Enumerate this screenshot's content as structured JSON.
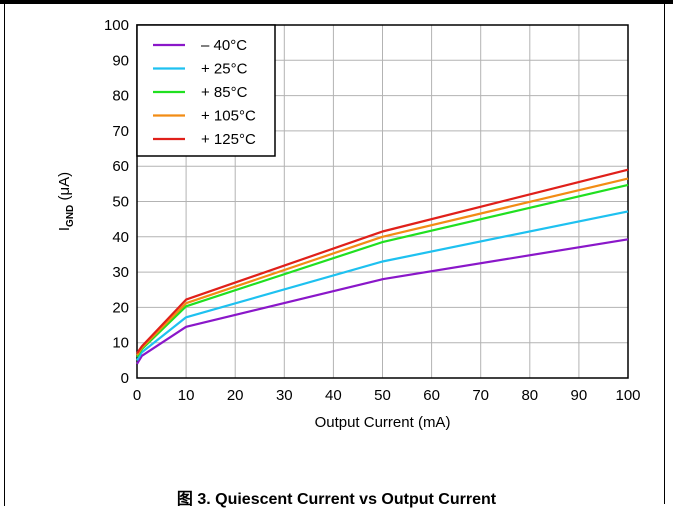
{
  "caption": "图 3. Quiescent Current vs Output Current",
  "chart_data": {
    "type": "line",
    "xlabel": "Output Current (mA)",
    "ylabel": "I",
    "ylabel_sub": "GND",
    "ylabel_unit": " (μA)",
    "xlim": [
      0,
      100
    ],
    "ylim": [
      0,
      100
    ],
    "xticks": [
      0,
      10,
      20,
      30,
      40,
      50,
      60,
      70,
      80,
      90,
      100
    ],
    "yticks": [
      0,
      10,
      20,
      30,
      40,
      50,
      60,
      70,
      80,
      90,
      100
    ],
    "grid": true,
    "legend_position": "top-left",
    "x": [
      0,
      1,
      10,
      50,
      100
    ],
    "series": [
      {
        "name": "– 40°C",
        "color": "#8a17c9",
        "values": [
          4,
          6.3,
          14.5,
          28,
          39.3
        ]
      },
      {
        "name": "+ 25°C",
        "color": "#1ec1f0",
        "values": [
          5,
          7.3,
          17.2,
          33,
          47.2
        ]
      },
      {
        "name": "+ 85°C",
        "color": "#20e020",
        "values": [
          6,
          8.2,
          20.3,
          38.5,
          54.7
        ]
      },
      {
        "name": "+ 105°C",
        "color": "#f28c14",
        "values": [
          6.5,
          8.6,
          21.2,
          40,
          56.5
        ]
      },
      {
        "name": "+ 125°C",
        "color": "#e0201a",
        "values": [
          7,
          9,
          22.2,
          41.5,
          59
        ]
      }
    ]
  }
}
